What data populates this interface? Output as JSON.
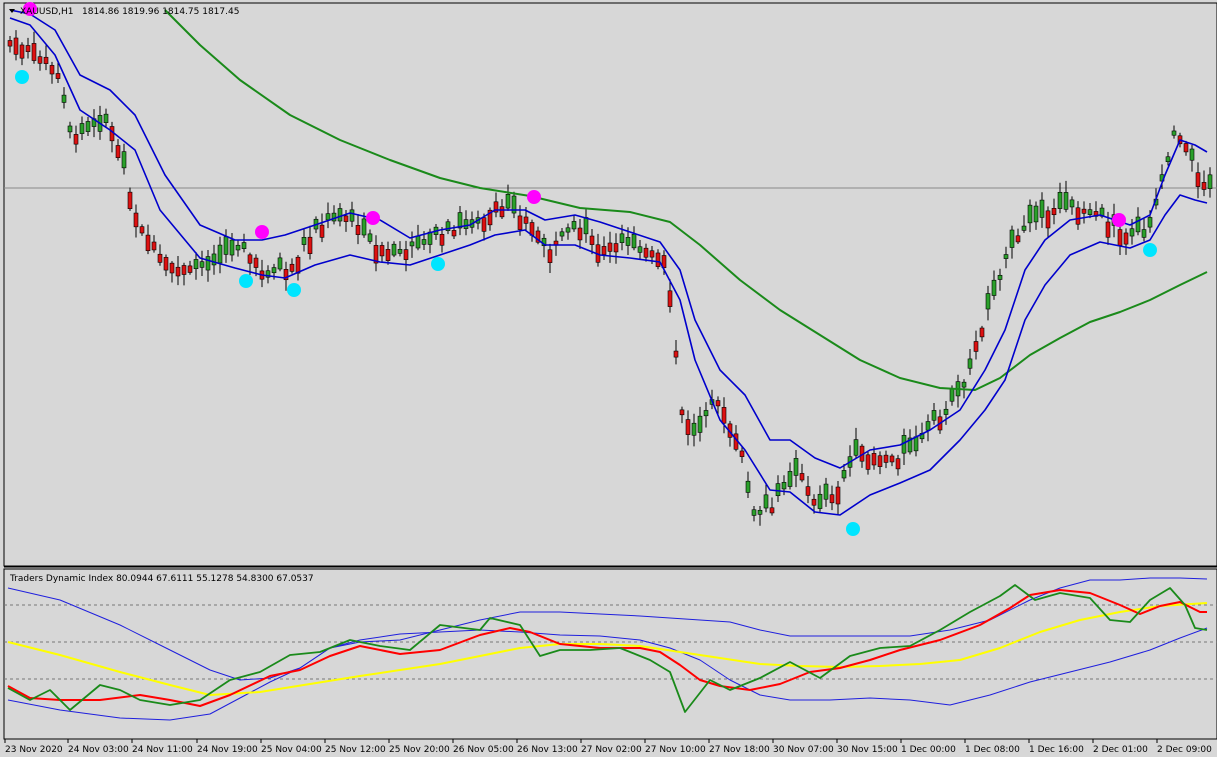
{
  "main_chart": {
    "symbol_label": "XAUUSD,H1",
    "ohlc_text": "1814.86 1819.96 1814.75 1817.45",
    "menu_icon": "triangle-down-icon"
  },
  "indicator": {
    "header_text": "Traders Dynamic Index 80.0944 67.6111 55.1278 54.8300 67.0537"
  },
  "time_axis": {
    "labels": [
      "23 Nov 2020",
      "24 Nov 03:00",
      "24 Nov 11:00",
      "24 Nov 19:00",
      "25 Nov 04:00",
      "25 Nov 12:00",
      "25 Nov 20:00",
      "26 Nov 05:00",
      "26 Nov 13:00",
      "27 Nov 02:00",
      "27 Nov 10:00",
      "27 Nov 18:00",
      "30 Nov 07:00",
      "30 Nov 15:00",
      "1 Dec 00:00",
      "1 Dec 08:00",
      "1 Dec 16:00",
      "2 Dec 01:00",
      "2 Dec 09:00"
    ]
  },
  "colors": {
    "background": "#d7d7d7",
    "bull": "#2aa02a",
    "bear": "#dd1111",
    "upper_band": "#0000cc",
    "ma_green": "#1a8a1a",
    "dot_magenta": "#ff00ff",
    "dot_cyan": "#00e5ff",
    "tdi_price": "#1a8a1a",
    "tdi_signal": "#ff0000",
    "tdi_base": "#ffff00",
    "tdi_bands": "#1f1fdd"
  },
  "chart_data": {
    "type": "candlestick",
    "symbol": "XAUUSD",
    "timeframe": "H1",
    "ohlc": [
      [
        1815,
        1818,
        1813,
        1816
      ],
      [
        1816,
        1819,
        1814,
        1817
      ],
      [
        1817,
        1820,
        1812,
        1813
      ],
      [
        1813,
        1815,
        1805,
        1808
      ],
      [
        1808,
        1812,
        1800,
        1805
      ],
      [
        1805,
        1808,
        1790,
        1792
      ],
      [
        1792,
        1795,
        1782,
        1785
      ],
      [
        1785,
        1792,
        1780,
        1790
      ],
      [
        1790,
        1795,
        1785,
        1788
      ],
      [
        1788,
        1796,
        1785,
        1795
      ],
      [
        1795,
        1798,
        1790,
        1792
      ],
      [
        1792,
        1794,
        1788,
        1790
      ],
      [
        1790,
        1792,
        1760,
        1765
      ],
      [
        1765,
        1772,
        1758,
        1770
      ],
      [
        1770,
        1775,
        1750,
        1752
      ],
      [
        1752,
        1760,
        1748,
        1755
      ],
      [
        1755,
        1760,
        1748,
        1750
      ],
      [
        1750,
        1756,
        1746,
        1752
      ],
      [
        1752,
        1758,
        1748,
        1750
      ],
      [
        1750,
        1760,
        1748,
        1758
      ],
      [
        1758,
        1762,
        1752,
        1756
      ],
      [
        1756,
        1765,
        1752,
        1762
      ],
      [
        1762,
        1770,
        1758,
        1768
      ],
      [
        1768,
        1772,
        1758,
        1760
      ],
      [
        1760,
        1764,
        1748,
        1752
      ],
      [
        1752,
        1756,
        1746,
        1754
      ],
      [
        1754,
        1768,
        1752,
        1765
      ],
      [
        1765,
        1775,
        1760,
        1772
      ],
      [
        1772,
        1778,
        1765,
        1768
      ],
      [
        1768,
        1778,
        1766,
        1776
      ],
      [
        1776,
        1780,
        1770,
        1772
      ],
      [
        1772,
        1778,
        1765,
        1770
      ],
      [
        1770,
        1775,
        1762,
        1764
      ],
      [
        1764,
        1768,
        1755,
        1758
      ],
      [
        1758,
        1765,
        1752,
        1762
      ],
      [
        1762,
        1770,
        1760,
        1768
      ],
      [
        1768,
        1772,
        1762,
        1770
      ],
      [
        1770,
        1775,
        1764,
        1766
      ],
      [
        1766,
        1780,
        1764,
        1778
      ],
      [
        1778,
        1784,
        1772,
        1776
      ],
      [
        1776,
        1782,
        1770,
        1775
      ],
      [
        1775,
        1780,
        1768,
        1772
      ],
      [
        1772,
        1778,
        1766,
        1770
      ],
      [
        1770,
        1775,
        1765,
        1768
      ]
    ],
    "price_grid_line": 1778,
    "indicator_levels": [
      68,
      50,
      32
    ]
  }
}
